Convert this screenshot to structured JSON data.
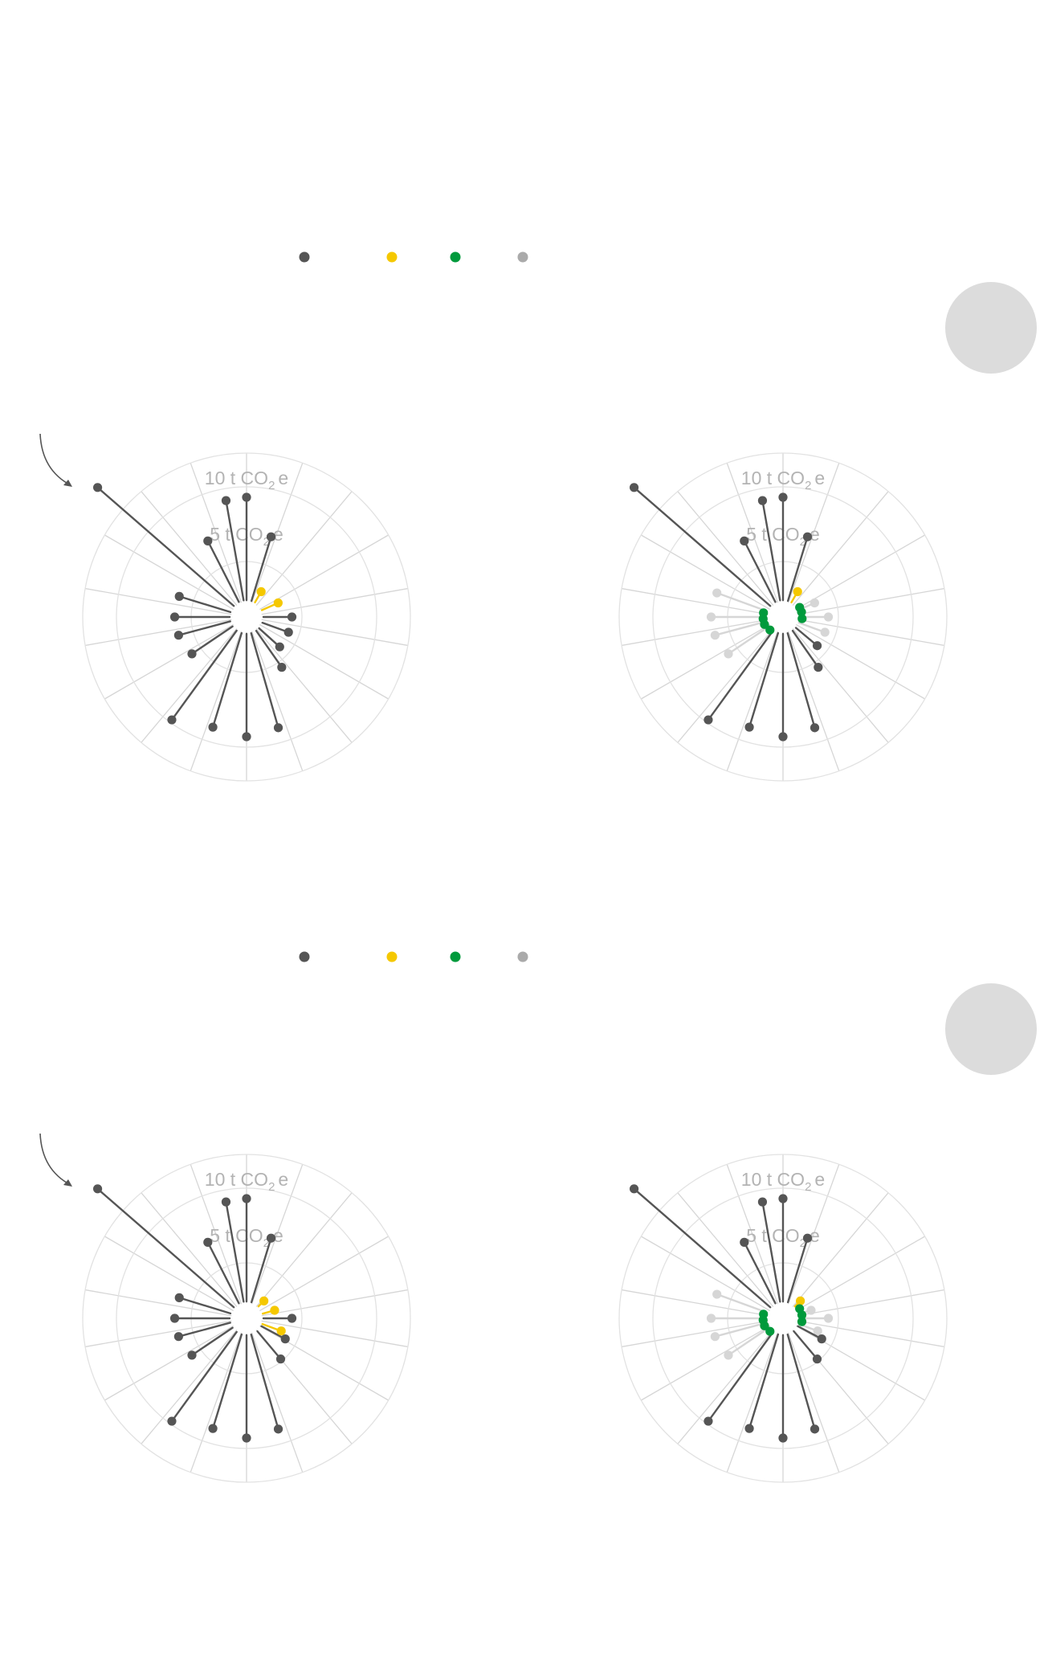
{
  "colors": {
    "dark": "#555555",
    "yellow": "#f5c800",
    "green": "#009a3c",
    "grey": "#aaaaaa",
    "faded": "#d6d6d6",
    "circle": "#dcdcdc"
  },
  "legend": [
    {
      "color": "#555555"
    },
    {
      "color": "#f5c800"
    },
    {
      "color": "#009a3c"
    },
    {
      "color": "#aaaaaa"
    }
  ],
  "ring_labels": [
    {
      "value": "10",
      "unit": "t",
      "chem": "CO",
      "sub": "2",
      "suffix": "e"
    },
    {
      "value": "5",
      "unit": "t",
      "chem": "CO",
      "sub": "2",
      "suffix": "e"
    }
  ],
  "chart_data": [
    {
      "type": "polar-lollipop",
      "panel": 1,
      "radial_unit": "t CO2e",
      "rings": [
        5,
        10
      ],
      "angles_deg": [
        0,
        20,
        40,
        60,
        80,
        100,
        120,
        140,
        160,
        180,
        200,
        220,
        240,
        260,
        280,
        300,
        320,
        340
      ],
      "points": [
        {
          "angle": 0,
          "value": 9.3,
          "series": "dark"
        },
        {
          "angle": 17,
          "value": 6.9,
          "series": "dark"
        },
        {
          "angle": 30,
          "value": 1.6,
          "series": "yellow"
        },
        {
          "angle": 66,
          "value": 2.3,
          "series": "yellow"
        },
        {
          "angle": 90,
          "value": 3.7,
          "series": "dark"
        },
        {
          "angle": 110,
          "value": 3.6,
          "series": "dark"
        },
        {
          "angle": 132,
          "value": 3.6,
          "series": "dark"
        },
        {
          "angle": 145,
          "value": 5.4,
          "series": "dark"
        },
        {
          "angle": 164,
          "value": 9.0,
          "series": "dark"
        },
        {
          "angle": 180,
          "value": 9.3,
          "series": "dark"
        },
        {
          "angle": 197,
          "value": 9.0,
          "series": "dark"
        },
        {
          "angle": 216,
          "value": 9.8,
          "series": "dark"
        },
        {
          "angle": 236,
          "value": 5.7,
          "series": "dark"
        },
        {
          "angle": 255,
          "value": 6.0,
          "series": "dark"
        },
        {
          "angle": 270,
          "value": 6.1,
          "series": "dark"
        },
        {
          "angle": 287,
          "value": 6.0,
          "series": "dark"
        },
        {
          "angle": 311,
          "value": 14.5,
          "series": "dark"
        },
        {
          "angle": 333,
          "value": 7.0,
          "series": "dark"
        },
        {
          "angle": 350,
          "value": 9.2,
          "series": "dark"
        }
      ]
    },
    {
      "type": "polar-lollipop",
      "panel": 2,
      "radial_unit": "t CO2e",
      "rings": [
        5,
        10
      ],
      "angles_deg": [
        0,
        20,
        40,
        60,
        80,
        100,
        120,
        140,
        160,
        180,
        200,
        220,
        240,
        260,
        280,
        300,
        320,
        340
      ],
      "points": [
        {
          "angle": 0,
          "value": 9.3,
          "series": "dark"
        },
        {
          "angle": 17,
          "value": 6.9,
          "series": "dark"
        },
        {
          "angle": 30,
          "value": 1.6,
          "series": "yellow"
        },
        {
          "angle": 66,
          "value": 2.3,
          "series": "faded"
        },
        {
          "angle": 60,
          "value": 0.3,
          "series": "green"
        },
        {
          "angle": 75,
          "value": 0.3,
          "series": "green"
        },
        {
          "angle": 90,
          "value": 3.7,
          "series": "faded"
        },
        {
          "angle": 95,
          "value": 0.3,
          "series": "green"
        },
        {
          "angle": 110,
          "value": 3.6,
          "series": "faded"
        },
        {
          "angle": 130,
          "value": 3.6,
          "series": "dark"
        },
        {
          "angle": 145,
          "value": 5.4,
          "series": "dark"
        },
        {
          "angle": 164,
          "value": 9.0,
          "series": "dark"
        },
        {
          "angle": 180,
          "value": 9.3,
          "series": "dark"
        },
        {
          "angle": 197,
          "value": 9.0,
          "series": "dark"
        },
        {
          "angle": 216,
          "value": 9.8,
          "series": "dark"
        },
        {
          "angle": 225,
          "value": 0.2,
          "series": "green"
        },
        {
          "angle": 236,
          "value": 5.7,
          "series": "faded"
        },
        {
          "angle": 248,
          "value": 0.4,
          "series": "green"
        },
        {
          "angle": 255,
          "value": 6.0,
          "series": "faded"
        },
        {
          "angle": 265,
          "value": 0.4,
          "series": "green"
        },
        {
          "angle": 270,
          "value": 6.1,
          "series": "faded"
        },
        {
          "angle": 282,
          "value": 0.4,
          "series": "green"
        },
        {
          "angle": 290,
          "value": 6.0,
          "series": "faded"
        },
        {
          "angle": 311,
          "value": 14.5,
          "series": "dark"
        },
        {
          "angle": 333,
          "value": 7.0,
          "series": "dark"
        },
        {
          "angle": 350,
          "value": 9.2,
          "series": "dark"
        }
      ]
    },
    {
      "type": "polar-lollipop",
      "panel": 3,
      "radial_unit": "t CO2e",
      "rings": [
        5,
        10
      ],
      "angles_deg": [
        0,
        20,
        40,
        60,
        80,
        100,
        120,
        140,
        160,
        180,
        200,
        220,
        240,
        260,
        280,
        300,
        320,
        340
      ],
      "points": [
        {
          "angle": 0,
          "value": 9.3,
          "series": "dark"
        },
        {
          "angle": 17,
          "value": 6.9,
          "series": "dark"
        },
        {
          "angle": 45,
          "value": 1.0,
          "series": "yellow"
        },
        {
          "angle": 74,
          "value": 1.6,
          "series": "yellow"
        },
        {
          "angle": 90,
          "value": 3.7,
          "series": "dark"
        },
        {
          "angle": 110,
          "value": 2.6,
          "series": "yellow"
        },
        {
          "angle": 118,
          "value": 3.5,
          "series": "dark"
        },
        {
          "angle": 140,
          "value": 4.7,
          "series": "dark"
        },
        {
          "angle": 164,
          "value": 9.0,
          "series": "dark"
        },
        {
          "angle": 180,
          "value": 9.3,
          "series": "dark"
        },
        {
          "angle": 197,
          "value": 9.0,
          "series": "dark"
        },
        {
          "angle": 216,
          "value": 9.8,
          "series": "dark"
        },
        {
          "angle": 236,
          "value": 5.7,
          "series": "dark"
        },
        {
          "angle": 255,
          "value": 6.0,
          "series": "dark"
        },
        {
          "angle": 270,
          "value": 6.1,
          "series": "dark"
        },
        {
          "angle": 287,
          "value": 6.0,
          "series": "dark"
        },
        {
          "angle": 311,
          "value": 14.5,
          "series": "dark"
        },
        {
          "angle": 333,
          "value": 7.0,
          "series": "dark"
        },
        {
          "angle": 350,
          "value": 9.2,
          "series": "dark"
        }
      ]
    },
    {
      "type": "polar-lollipop",
      "panel": 4,
      "radial_unit": "t CO2e",
      "rings": [
        5,
        10
      ],
      "angles_deg": [
        0,
        20,
        40,
        60,
        80,
        100,
        120,
        140,
        160,
        180,
        200,
        220,
        240,
        260,
        280,
        300,
        320,
        340
      ],
      "points": [
        {
          "angle": 0,
          "value": 9.3,
          "series": "dark"
        },
        {
          "angle": 17,
          "value": 6.9,
          "series": "dark"
        },
        {
          "angle": 45,
          "value": 1.0,
          "series": "yellow"
        },
        {
          "angle": 60,
          "value": 0.3,
          "series": "green"
        },
        {
          "angle": 74,
          "value": 1.6,
          "series": "faded"
        },
        {
          "angle": 80,
          "value": 0.3,
          "series": "green"
        },
        {
          "angle": 90,
          "value": 3.7,
          "series": "faded"
        },
        {
          "angle": 100,
          "value": 0.3,
          "series": "green"
        },
        {
          "angle": 110,
          "value": 2.6,
          "series": "faded"
        },
        {
          "angle": 118,
          "value": 3.5,
          "series": "dark"
        },
        {
          "angle": 140,
          "value": 4.7,
          "series": "dark"
        },
        {
          "angle": 164,
          "value": 9.0,
          "series": "dark"
        },
        {
          "angle": 180,
          "value": 9.3,
          "series": "dark"
        },
        {
          "angle": 197,
          "value": 9.0,
          "series": "dark"
        },
        {
          "angle": 216,
          "value": 9.8,
          "series": "dark"
        },
        {
          "angle": 225,
          "value": 0.2,
          "series": "green"
        },
        {
          "angle": 236,
          "value": 5.7,
          "series": "faded"
        },
        {
          "angle": 248,
          "value": 0.4,
          "series": "green"
        },
        {
          "angle": 255,
          "value": 6.0,
          "series": "faded"
        },
        {
          "angle": 265,
          "value": 0.4,
          "series": "green"
        },
        {
          "angle": 270,
          "value": 6.1,
          "series": "faded"
        },
        {
          "angle": 282,
          "value": 0.4,
          "series": "green"
        },
        {
          "angle": 290,
          "value": 6.0,
          "series": "faded"
        },
        {
          "angle": 311,
          "value": 14.5,
          "series": "dark"
        },
        {
          "angle": 333,
          "value": 7.0,
          "series": "dark"
        },
        {
          "angle": 350,
          "value": 9.2,
          "series": "dark"
        }
      ]
    }
  ]
}
